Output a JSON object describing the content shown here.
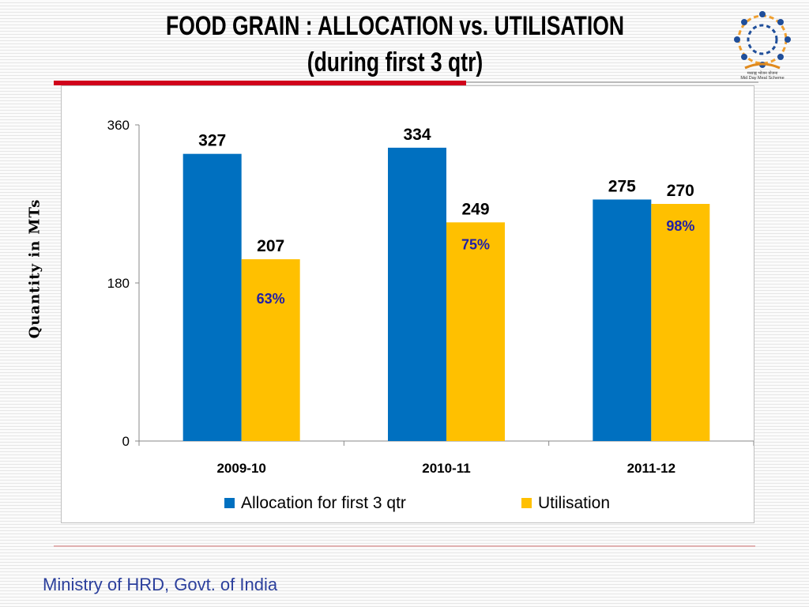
{
  "slide": {
    "title_line1": "FOOD GRAIN : ALLOCATION vs. UTILISATION",
    "title_line2": "(during first 3 qtr)",
    "logo_caption_hindi": "मध्याह्न भोजन योजना",
    "logo_caption": "Mid Day Meal Scheme",
    "footer": "Ministry of HRD, Govt. of India"
  },
  "chart_data": {
    "type": "bar",
    "title": "",
    "xlabel": "",
    "ylabel": "Quantity in MTs",
    "ylim": [
      0,
      360
    ],
    "yticks": [
      0,
      180,
      360
    ],
    "grid": false,
    "legend_position": "bottom",
    "categories": [
      "2009-10",
      "2010-11",
      "2011-12"
    ],
    "series": [
      {
        "name": "Allocation for first 3 qtr",
        "color": "#0070c0",
        "values": [
          327,
          334,
          275
        ]
      },
      {
        "name": "Utilisation",
        "color": "#ffc000",
        "values": [
          207,
          249,
          270
        ]
      }
    ],
    "annotations": [
      "63%",
      "75%",
      "98%"
    ],
    "annotation_color": "#1f1fa8"
  }
}
